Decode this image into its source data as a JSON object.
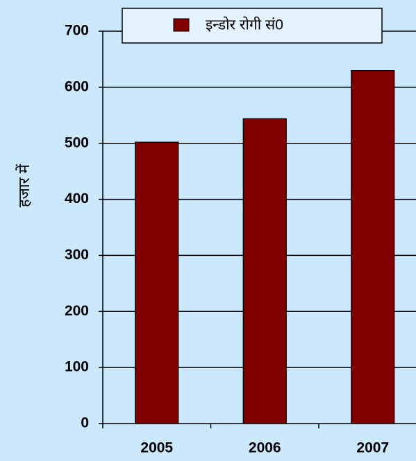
{
  "chart_data": {
    "type": "bar",
    "y_label": "हजार में",
    "categories": [
      "2005",
      "2006",
      "2007"
    ],
    "series": [
      {
        "name": "इन्डोर रोगी सं0",
        "color": "#800000",
        "values": [
          502,
          544,
          630
        ]
      }
    ],
    "ylim": [
      0,
      700
    ],
    "yticks": [
      0,
      100,
      200,
      300,
      400,
      500,
      600,
      700
    ],
    "grid": true,
    "legend": "top"
  }
}
